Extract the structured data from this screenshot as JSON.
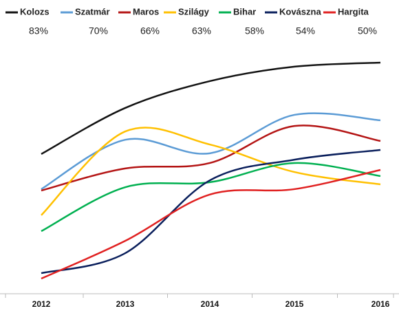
{
  "chart_data": {
    "type": "line",
    "categories": [
      "2012",
      "2013",
      "2014",
      "2015",
      "2016"
    ],
    "ylim": [
      0,
      100
    ],
    "series": [
      {
        "name": "Kolozs",
        "color": "#111111",
        "share": {
          "value": 83,
          "label": "83%"
        },
        "values": [
          58.3,
          77.7,
          89.0,
          95.1,
          96.8
        ]
      },
      {
        "name": "Szatmár",
        "color": "#5b9bd5",
        "share": {
          "value": 70,
          "label": "70%"
        },
        "values": [
          43.5,
          64.3,
          58.6,
          74.8,
          72.5
        ]
      },
      {
        "name": "Maros",
        "color": "#b41414",
        "share": {
          "value": 66,
          "label": "66%"
        },
        "values": [
          42.9,
          52.2,
          54.5,
          70.1,
          63.8
        ]
      },
      {
        "name": "Szilágy",
        "color": "#ffc000",
        "share": {
          "value": 63,
          "label": "63%"
        },
        "values": [
          32.5,
          67.8,
          62.3,
          50.7,
          45.5
        ]
      },
      {
        "name": "Bihar",
        "color": "#00b050",
        "share": {
          "value": 58,
          "label": "58%"
        },
        "values": [
          25.8,
          44.3,
          46.4,
          54.5,
          49.0
        ]
      },
      {
        "name": "Kovászna",
        "color": "#0a1f5c",
        "share": {
          "value": 54,
          "label": "54%"
        },
        "values": [
          8.1,
          16.5,
          47.2,
          55.9,
          60.0
        ]
      },
      {
        "name": "Hargita",
        "color": "#e02020",
        "share": {
          "value": 50,
          "label": "50%"
        },
        "values": [
          5.8,
          21.7,
          41.2,
          43.5,
          51.6
        ]
      }
    ]
  }
}
